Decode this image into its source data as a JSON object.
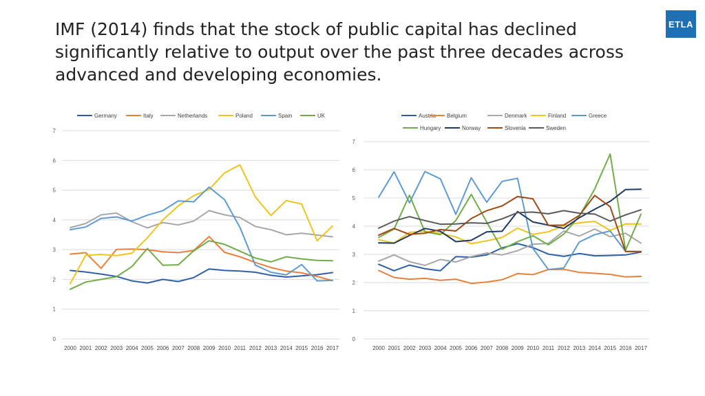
{
  "slide": {
    "title": "IMF (2014) finds that the stock of public capital has declined significantly relative to output  over the past three decades across advanced and developing economies.",
    "logo_text": "ETLA",
    "logo_color": "#1f6fb5"
  },
  "chart_data": [
    {
      "type": "line",
      "x": [
        "2000",
        "2001",
        "2002",
        "2003",
        "2004",
        "2005",
        "2006",
        "2007",
        "2008",
        "2009",
        "2010",
        "2011",
        "2012",
        "2013",
        "2014",
        "2015",
        "2016",
        "2017"
      ],
      "ylim": [
        0,
        7
      ],
      "yticks": [
        0,
        1,
        2,
        3,
        4,
        5,
        6,
        7
      ],
      "grid": true,
      "legend": "top",
      "series": [
        {
          "name": "Germany",
          "color": "#2e5fa8",
          "values": [
            2.3,
            2.25,
            2.18,
            2.1,
            1.95,
            1.88,
            2.0,
            1.93,
            2.06,
            2.35,
            2.3,
            2.28,
            2.24,
            2.14,
            2.08,
            2.12,
            2.16,
            2.23
          ]
        },
        {
          "name": "Italy",
          "color": "#e8803a",
          "values": [
            2.85,
            2.9,
            2.37,
            3.01,
            3.02,
            3.0,
            2.93,
            2.9,
            2.97,
            3.44,
            2.91,
            2.76,
            2.57,
            2.4,
            2.28,
            2.22,
            2.1,
            1.96
          ]
        },
        {
          "name": "Netherlands",
          "color": "#a6a6a6",
          "values": [
            3.74,
            3.88,
            4.17,
            4.23,
            3.94,
            3.73,
            3.91,
            3.83,
            3.96,
            4.31,
            4.17,
            4.08,
            3.78,
            3.67,
            3.5,
            3.55,
            3.49,
            3.43
          ]
        },
        {
          "name": "Poland",
          "color": "#f2c318",
          "values": [
            1.86,
            2.81,
            2.84,
            2.8,
            2.88,
            3.4,
            4.0,
            4.47,
            4.81,
            5.02,
            5.58,
            5.85,
            4.77,
            4.15,
            4.65,
            4.53,
            3.3,
            3.79
          ]
        },
        {
          "name": "Spain",
          "color": "#5b9bd5",
          "values": [
            3.67,
            3.76,
            4.05,
            4.1,
            3.96,
            4.16,
            4.31,
            4.64,
            4.61,
            5.1,
            4.68,
            3.75,
            2.48,
            2.24,
            2.15,
            2.5,
            1.95,
            1.97
          ]
        },
        {
          "name": "UK",
          "color": "#70ad47",
          "values": [
            1.67,
            1.91,
            2.0,
            2.09,
            2.43,
            3.04,
            2.48,
            2.49,
            2.96,
            3.3,
            3.18,
            2.95,
            2.72,
            2.59,
            2.76,
            2.69,
            2.64,
            2.63
          ]
        }
      ]
    },
    {
      "type": "line",
      "x": [
        "2000",
        "2001",
        "2002",
        "2003",
        "2004",
        "2005",
        "2006",
        "2007",
        "2008",
        "2009",
        "2010",
        "2011",
        "2012",
        "2013",
        "2014",
        "2015",
        "2016",
        "2017"
      ],
      "ylim": [
        0,
        7
      ],
      "yticks": [
        0,
        1,
        2,
        3,
        4,
        5,
        6,
        7
      ],
      "grid": true,
      "legend": "top",
      "series": [
        {
          "name": "Austria",
          "color": "#2e5fa8",
          "values": [
            2.65,
            2.42,
            2.62,
            2.49,
            2.42,
            2.92,
            2.9,
            2.98,
            3.23,
            3.38,
            3.24,
            3.01,
            2.93,
            3.03,
            2.95,
            2.96,
            2.98,
            3.08
          ]
        },
        {
          "name": "Belgium",
          "color": "#e8803a",
          "values": [
            2.43,
            2.18,
            2.12,
            2.15,
            2.08,
            2.12,
            1.97,
            2.02,
            2.1,
            2.32,
            2.28,
            2.46,
            2.47,
            2.36,
            2.33,
            2.29,
            2.2,
            2.22
          ]
        },
        {
          "name": "Denmark",
          "color": "#a6a6a6",
          "values": [
            2.76,
            2.98,
            2.74,
            2.61,
            2.82,
            2.73,
            2.92,
            3.05,
            2.98,
            3.13,
            3.36,
            3.39,
            3.83,
            3.65,
            3.9,
            3.63,
            3.75,
            3.4
          ]
        },
        {
          "name": "Finland",
          "color": "#f2c318",
          "values": [
            3.52,
            3.4,
            3.78,
            3.82,
            3.75,
            3.62,
            3.38,
            3.48,
            3.6,
            3.93,
            3.71,
            3.8,
            4.02,
            4.12,
            4.17,
            3.85,
            4.08,
            4.08
          ]
        },
        {
          "name": "Greece",
          "color": "#5b9bd5",
          "values": [
            5.03,
            5.93,
            4.83,
            5.94,
            5.68,
            4.42,
            5.72,
            4.85,
            5.59,
            5.7,
            3.21,
            2.46,
            2.52,
            3.44,
            3.7,
            3.83,
            3.11,
            3.1
          ]
        },
        {
          "name": "Hungary",
          "color": "#70ad47",
          "values": [
            3.6,
            3.9,
            5.1,
            3.8,
            3.7,
            4.2,
            5.13,
            4.15,
            3.18,
            3.45,
            3.66,
            3.34,
            3.72,
            4.35,
            5.32,
            6.56,
            3.15,
            4.43
          ]
        },
        {
          "name": "Norway",
          "color": "#1f3864",
          "values": [
            3.41,
            3.4,
            3.67,
            3.92,
            3.82,
            3.45,
            3.5,
            3.8,
            3.82,
            4.52,
            4.15,
            4.04,
            3.92,
            4.3,
            4.6,
            4.88,
            5.3,
            5.31
          ]
        },
        {
          "name": "Slovenia",
          "color": "#a04a12",
          "values": [
            3.68,
            3.92,
            3.71,
            3.75,
            3.88,
            3.83,
            4.27,
            4.55,
            4.72,
            5.05,
            4.97,
            4.03,
            4.04,
            4.38,
            5.09,
            4.69,
            3.1,
            3.1
          ]
        },
        {
          "name": "Sweden",
          "color": "#595959",
          "values": [
            3.93,
            4.18,
            4.34,
            4.2,
            4.07,
            4.08,
            4.12,
            4.1,
            4.26,
            4.48,
            4.5,
            4.44,
            4.55,
            4.46,
            4.43,
            4.18,
            4.4,
            4.58
          ]
        }
      ]
    }
  ]
}
